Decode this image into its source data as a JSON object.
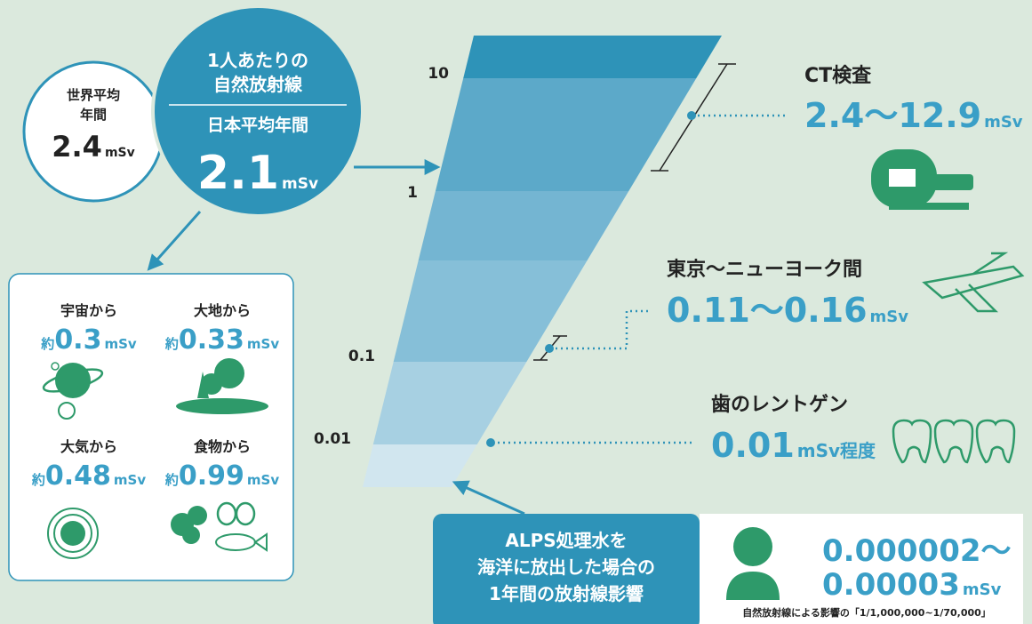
{
  "world": {
    "lines": [
      "世界平均",
      "年間"
    ],
    "value": "2.4",
    "unit": "mSv"
  },
  "japan": {
    "lines": [
      "1人あたりの",
      "自然放射線"
    ],
    "label": "日本平均年間",
    "value": "2.1",
    "unit": "mSv"
  },
  "scale": [
    "10",
    "1",
    "0.1",
    "0.01"
  ],
  "sources": [
    {
      "label": "宇宙から",
      "prefix": "約",
      "value": "0.3",
      "unit": "mSv"
    },
    {
      "label": "大地から",
      "prefix": "約",
      "value": "0.33",
      "unit": "mSv"
    },
    {
      "label": "大気から",
      "prefix": "約",
      "value": "0.48",
      "unit": "mSv"
    },
    {
      "label": "食物から",
      "prefix": "約",
      "value": "0.99",
      "unit": "mSv"
    }
  ],
  "examples": [
    {
      "label": "CT検査",
      "value": "2.4〜12.9",
      "unit": "mSv"
    },
    {
      "label": "東京〜ニューヨーク間",
      "value": "0.11〜0.16",
      "unit": "mSv"
    },
    {
      "label": "歯のレントゲン",
      "value": "0.01",
      "unit": "mSv程度"
    }
  ],
  "alps": {
    "lines": [
      "ALPS処理水を",
      "海洋に放出した場合の",
      "1年間の放射線影響"
    ],
    "value_lines": [
      "0.000002〜",
      "0.00003"
    ],
    "unit": "mSv",
    "note": "自然放射線による影響の「1/1,000,000~1/70,000」"
  }
}
